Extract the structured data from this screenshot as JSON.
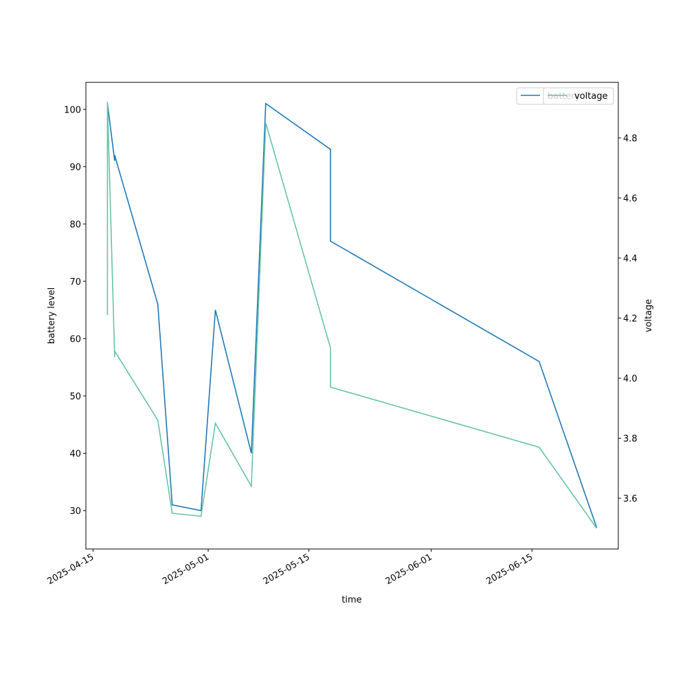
{
  "chart_data": {
    "type": "line",
    "x": [
      "2025-04-17",
      "2025-04-17",
      "2025-04-18",
      "2025-04-18",
      "2025-04-24",
      "2025-04-26",
      "2025-04-30",
      "2025-05-02",
      "2025-05-07",
      "2025-05-09",
      "2025-05-18",
      "2025-05-18",
      "2025-06-16",
      "2025-06-24"
    ],
    "series": [
      {
        "name": "battery",
        "color": "#1f77b4",
        "values": [
          101,
          101,
          91,
          92,
          66,
          31,
          30,
          65,
          40,
          101,
          93,
          77,
          56,
          27
        ]
      },
      {
        "name": "voltage",
        "color": "#66c2a5",
        "axis": "y2",
        "values": [
          4.21,
          4.92,
          4.07,
          4.09,
          3.86,
          3.55,
          3.54,
          3.85,
          3.64,
          4.85,
          4.1,
          3.97,
          3.77,
          3.5
        ]
      }
    ],
    "xlabel": "time",
    "ylabel": "battery level",
    "y2label": "voltage",
    "xlim": [
      "2025-04-14",
      "2025-06-27"
    ],
    "xticks": [
      "2025-04-15",
      "2025-05-01",
      "2025-05-15",
      "2025-06-01",
      "2025-06-15"
    ],
    "ylim": [
      23.3,
      104.7
    ],
    "yticks": [
      30,
      40,
      50,
      60,
      70,
      80,
      90,
      100
    ],
    "y2lim": [
      3.431,
      4.985
    ],
    "y2ticks": [
      3.6,
      3.8,
      {
        "value": 4,
        "label": "4.0"
      },
      4.2,
      4.4,
      4.6,
      4.8
    ],
    "legend": "upper right"
  }
}
